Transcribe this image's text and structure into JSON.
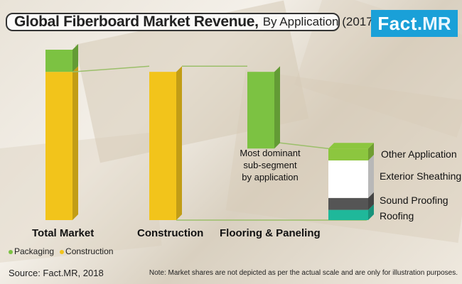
{
  "header": {
    "title": "Global Fiberboard Market Revenue,",
    "subtitle": "By Application (2017)"
  },
  "logo": {
    "text": "Fact",
    "accent": ".MR"
  },
  "chart_data": {
    "type": "bar",
    "title": "Global Fiberboard Market Revenue, By Application (2017)",
    "categories": [
      "Total Market",
      "Construction",
      "Flooring & Paneling"
    ],
    "legend": [
      "Packaging",
      "Construction"
    ],
    "legend_placement": "bottom-left",
    "colors": {
      "Packaging": "#7cc242",
      "Construction": "#f2c41b",
      "Flooring & Paneling": "#7cc242",
      "Other Application": "#8cc63f",
      "Exterior Sheathing": "#ffffff",
      "Sound Proofing": "#555555",
      "Roofing": "#1fb89a"
    },
    "series": [
      {
        "name": "Packaging",
        "values": [
          0.13,
          null,
          null
        ]
      },
      {
        "name": "Construction",
        "values": [
          0.87,
          0.87,
          0.45
        ]
      }
    ],
    "breakdown": {
      "of": "Construction",
      "segments": [
        {
          "name": "Flooring & Paneling",
          "share": 0.45,
          "annotation": "Most dominant sub-segment by application"
        },
        {
          "name": "Other Application",
          "share": 0.07
        },
        {
          "name": "Exterior Sheathing",
          "share": 0.22
        },
        {
          "name": "Sound Proofing",
          "share": 0.07
        },
        {
          "name": "Roofing",
          "share": 0.06
        }
      ]
    },
    "note": "Market shares are not depicted as per the actual scale and are only for illustration purposes."
  },
  "annotation": {
    "line1": "Most dominant",
    "line2": "sub-segment",
    "line3": "by application"
  },
  "stack_labels": {
    "other": "Other Application",
    "exterior": "Exterior Sheathing",
    "sound": "Sound Proofing",
    "roofing": "Roofing"
  },
  "legend": {
    "packaging": "Packaging",
    "construction": "Construction"
  },
  "footer": {
    "source": "Source: Fact.MR, 2018",
    "note": "Note: Market shares are not depicted as per the actual scale and are only for illustration purposes."
  }
}
